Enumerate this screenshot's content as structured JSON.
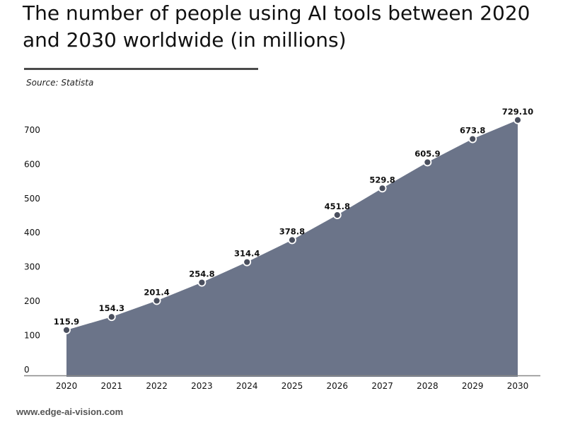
{
  "title": "The number of people using AI tools between 2020 and 2030 worldwide (in millions)",
  "source": "Source: Statista",
  "footer": "www.edge-ai-vision.com",
  "colors": {
    "area": "#6b7489",
    "marker": "#4a4f5e",
    "marker_stroke": "#ffffff",
    "axis": "#888888"
  },
  "chart_data": {
    "type": "area",
    "title": "The number of people using AI tools between 2020 and 2030 worldwide (in millions)",
    "xlabel": "",
    "ylabel": "",
    "categories": [
      "2020",
      "2021",
      "2022",
      "2023",
      "2024",
      "2025",
      "2026",
      "2027",
      "2028",
      "2029",
      "2030"
    ],
    "values": [
      115.9,
      154.3,
      201.4,
      254.8,
      314.4,
      378.8,
      451.8,
      529.8,
      605.9,
      673.8,
      729.1
    ],
    "data_labels": [
      "115.9",
      "154.3",
      "201.4",
      "254.8",
      "314.4",
      "378.8",
      "451.8",
      "529.8",
      "605.9",
      "673.8",
      "729.10"
    ],
    "yticks": [
      "0",
      "100",
      "200",
      "300",
      "400",
      "500",
      "600",
      "700"
    ],
    "ylim": [
      0,
      760
    ],
    "grid": false,
    "legend": "none"
  }
}
